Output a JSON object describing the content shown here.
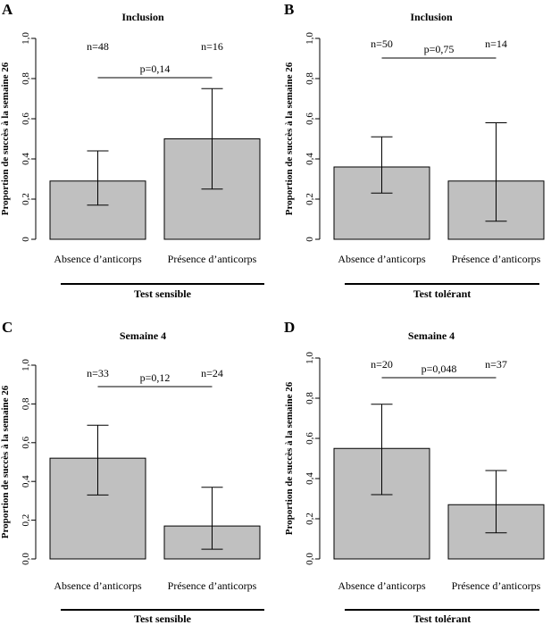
{
  "chart_data": [
    {
      "panel": "A",
      "type": "bar",
      "title": "Inclusion",
      "ylabel": "Proportion de succès à la semaine 26",
      "ylim": [
        0,
        1.0
      ],
      "yticks": [
        "0",
        "0,2",
        "0,4",
        "0,6",
        "0,8",
        "1,0"
      ],
      "categories": [
        "Absence d’anticorps",
        "Présence d’anticorps"
      ],
      "values": [
        0.29,
        0.5
      ],
      "error_low": [
        0.17,
        0.25
      ],
      "error_high": [
        0.44,
        0.75
      ],
      "n_labels": [
        "n=48",
        "n=16"
      ],
      "pvalue": "p=0,14",
      "group_label": "Test sensible"
    },
    {
      "panel": "B",
      "type": "bar",
      "title": "Inclusion",
      "ylabel": "Proportion de succès à la semaine 26",
      "ylim": [
        0,
        1.0
      ],
      "yticks": [
        "0",
        "0,2",
        "0,4",
        "0,6",
        "0,8",
        "1,0"
      ],
      "categories": [
        "Absence d’anticorps",
        "Présence d’anticorps"
      ],
      "values": [
        0.36,
        0.29
      ],
      "error_low": [
        0.23,
        0.09
      ],
      "error_high": [
        0.51,
        0.58
      ],
      "n_labels": [
        "n=50",
        "n=14"
      ],
      "pvalue": "p=0,75",
      "group_label": "Test tolérant"
    },
    {
      "panel": "C",
      "type": "bar",
      "title": "Semaine 4",
      "ylabel": "Proportion de succès à la semaine 26",
      "ylim": [
        0,
        1.0
      ],
      "yticks": [
        "0,0",
        "0,2",
        "0,4",
        "0,6",
        "0,8",
        "1,0"
      ],
      "categories": [
        "Absence d’anticorps",
        "Présence d’anticorps"
      ],
      "values": [
        0.52,
        0.17
      ],
      "error_low": [
        0.33,
        0.05
      ],
      "error_high": [
        0.69,
        0.37
      ],
      "n_labels": [
        "n=33",
        "n=24"
      ],
      "pvalue": "p=0,12",
      "group_label": "Test sensible"
    },
    {
      "panel": "D",
      "type": "bar",
      "title": "Semaine 4",
      "ylabel": "Proportion de succès à la semaine 26",
      "ylim": [
        0,
        1.0
      ],
      "yticks": [
        "0,0",
        "0,2",
        "0,4",
        "0,6",
        "0,8",
        "1,0"
      ],
      "categories": [
        "Absence d’anticorps",
        "Présence d’anticorps"
      ],
      "values": [
        0.55,
        0.27
      ],
      "error_low": [
        0.32,
        0.13
      ],
      "error_high": [
        0.77,
        0.44
      ],
      "n_labels": [
        "n=20",
        "n=37"
      ],
      "pvalue": "p=0,048",
      "group_label": "Test tolérant"
    }
  ],
  "colors": {
    "bar_fill": "#c0c0c0",
    "stroke": "#000000"
  }
}
